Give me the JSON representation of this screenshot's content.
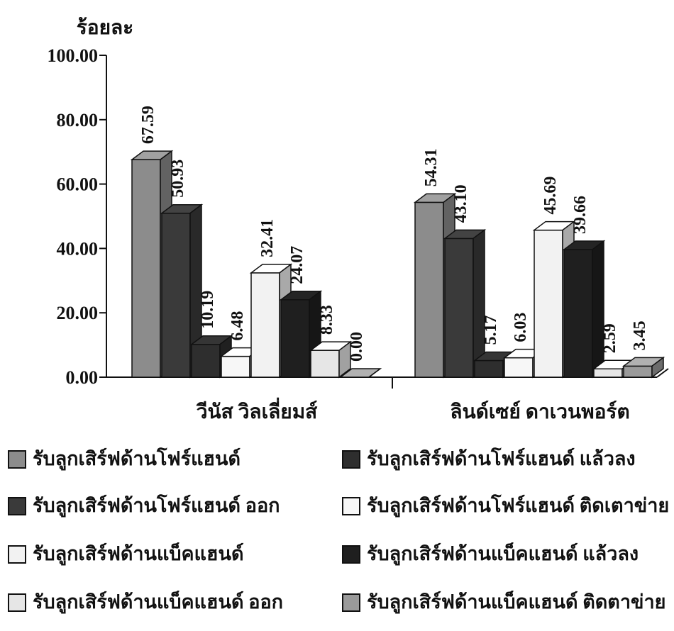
{
  "chart_data": {
    "type": "bar",
    "ylabel": "ร้อยละ",
    "ylim": [
      0,
      100
    ],
    "yticks": [
      "0.00",
      "20.00",
      "40.00",
      "60.00",
      "80.00",
      "100.00"
    ],
    "categories": [
      "วีนัส วิลเลี่ยมส์",
      "ลินด์เซย์ ดาเวนพอร์ต"
    ],
    "series": [
      {
        "name": "รับลูกเสิร์ฟด้านโฟร์แฮนด์",
        "values": [
          67.59,
          54.31
        ],
        "labels": [
          "67.59",
          "54.31"
        ],
        "color": "#8c8c8c"
      },
      {
        "name": "รับลูกเสิร์ฟด้านโฟร์แฮนด์ ออก",
        "values": [
          50.93,
          43.1
        ],
        "labels": [
          "50.93",
          "43.10"
        ],
        "color": "#3a3a3a"
      },
      {
        "name": "รับลูกเสิร์ฟด้านโฟร์แฮนด์ แล้วลง",
        "values": [
          10.19,
          5.17
        ],
        "labels": [
          "10.19",
          "5.17"
        ],
        "color": "#2e2e2e"
      },
      {
        "name": "รับลูกเสิร์ฟด้านโฟร์แฮนด์ ติดเตาข่าย",
        "values": [
          6.48,
          6.03
        ],
        "labels": [
          "6.48",
          "6.03"
        ],
        "color": "#f7f7f7"
      },
      {
        "name": "รับลูกเสิร์ฟด้านแบ็คแฮนด์",
        "values": [
          32.41,
          45.69
        ],
        "labels": [
          "32.41",
          "45.69"
        ],
        "color": "#f2f2f2"
      },
      {
        "name": "รับลูกเสิร์ฟด้านแบ็คแฮนด์ แล้วลง",
        "values": [
          24.07,
          39.66
        ],
        "labels": [
          "24.07",
          "39.66"
        ],
        "color": "#1f1f1f"
      },
      {
        "name": "รับลูกเสิร์ฟด้านแบ็คแฮนด์ ออก",
        "values": [
          8.33,
          2.59
        ],
        "labels": [
          "8.33",
          "2.59"
        ],
        "color": "#e6e6e6"
      },
      {
        "name": "รับลูกเสิร์ฟด้านแบ็คแฮนด์ ติดตาข่าย",
        "values": [
          0.0,
          3.45
        ],
        "labels": [
          "0.00",
          "3.45"
        ],
        "color": "#9a9a9a"
      }
    ],
    "legend_order": [
      0,
      2,
      1,
      3,
      4,
      5,
      6,
      7
    ],
    "legend_position": "bottom",
    "grid": false,
    "bar_style": "3d"
  }
}
